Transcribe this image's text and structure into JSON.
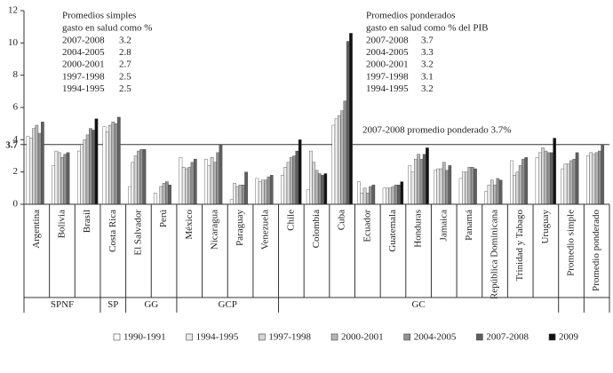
{
  "chart_data": {
    "type": "bar",
    "categories": [
      "Argentina",
      "Bolivia",
      "Brasil",
      "Costa Rica",
      "El Salvador",
      "Perú",
      "México",
      "Nicaragua",
      "Paraguay",
      "Venezuela",
      "Chile",
      "Colombia",
      "Cuba",
      "Ecuador",
      "Guatemala",
      "Honduras",
      "Jamaica",
      "Panamá",
      "República Dominicana",
      "Trinidad y Tabago",
      "Uruguay",
      "Promedio simple",
      "Promedio ponderado"
    ],
    "category_groups": [
      "SPNF",
      "SPNF",
      "SPNF",
      "SP",
      "GG",
      "GG",
      "GCP",
      "GCP",
      "GCP",
      "GCP",
      "GC",
      "GC",
      "GC",
      "GC",
      "GC",
      "GC",
      "GC",
      "GC",
      "GC",
      "GC",
      "GC",
      null,
      null
    ],
    "series": [
      {
        "name": "1990-1991",
        "color": "#ffffff",
        "values": [
          4.2,
          2.4,
          3.3,
          4.8,
          1.1,
          0.7,
          2.9,
          2.8,
          0.3,
          1.6,
          1.8,
          0.9,
          4.9,
          1.4,
          1.0,
          2.4,
          2.1,
          1.6,
          0.8,
          2.7,
          2.9,
          2.2,
          3.0
        ]
      },
      {
        "name": "1994-1995",
        "color": "#ebebeb",
        "values": [
          4.1,
          3.3,
          3.7,
          4.5,
          2.6,
          null,
          2.3,
          2.4,
          1.3,
          1.4,
          2.3,
          3.3,
          5.3,
          0.7,
          1.0,
          2.0,
          2.2,
          2.0,
          1.2,
          1.8,
          3.2,
          2.5,
          3.2
        ]
      },
      {
        "name": "1997-1998",
        "color": "#d4d4d4",
        "values": [
          4.7,
          3.2,
          4.0,
          4.9,
          3.0,
          1.1,
          2.2,
          2.9,
          1.1,
          1.5,
          2.6,
          2.6,
          5.5,
          1.0,
          1.0,
          2.8,
          2.2,
          2.0,
          1.5,
          2.0,
          3.5,
          2.5,
          3.1
        ]
      },
      {
        "name": "2000-2001",
        "color": "#b5b5b5",
        "values": [
          4.9,
          2.9,
          4.3,
          5.1,
          3.3,
          1.3,
          2.3,
          2.6,
          1.2,
          1.5,
          2.9,
          2.1,
          5.8,
          0.7,
          1.1,
          3.1,
          2.6,
          2.3,
          1.2,
          2.4,
          3.3,
          2.7,
          3.2
        ]
      },
      {
        "name": "2004-2005",
        "color": "#919191",
        "values": [
          4.4,
          3.1,
          4.7,
          5.0,
          3.4,
          1.4,
          2.6,
          3.2,
          1.2,
          1.7,
          3.0,
          1.9,
          6.4,
          1.1,
          1.2,
          2.8,
          2.1,
          2.3,
          1.6,
          2.8,
          3.2,
          2.8,
          3.3
        ]
      },
      {
        "name": "2007-2008",
        "color": "#5f5f5f",
        "values": [
          5.1,
          3.2,
          4.6,
          5.4,
          3.4,
          1.2,
          2.8,
          3.7,
          2.0,
          1.8,
          3.3,
          1.8,
          10.1,
          1.2,
          1.2,
          3.1,
          2.4,
          2.2,
          1.5,
          2.9,
          3.2,
          3.2,
          3.7
        ]
      },
      {
        "name": "2009",
        "color": "#111111",
        "values": [
          null,
          null,
          5.3,
          null,
          null,
          null,
          null,
          null,
          null,
          null,
          4.0,
          1.9,
          10.6,
          null,
          1.4,
          3.5,
          null,
          null,
          null,
          null,
          4.1,
          null,
          null
        ]
      }
    ],
    "ylim": [
      0,
      12
    ],
    "yticks": [
      0,
      2,
      4,
      6,
      8,
      10,
      12
    ],
    "reference_line": {
      "value": 3.7,
      "label": "2007-2008 promedio ponderado 3.7%"
    },
    "annotations": [
      {
        "title": [
          "Promedios simples",
          "gasto en salud como %"
        ],
        "rows": [
          {
            "period": "2007-2008",
            "value": 3.2
          },
          {
            "period": "2004-2005",
            "value": 2.8
          },
          {
            "period": "2000-2001",
            "value": 2.7
          },
          {
            "period": "1997-1998",
            "value": 2.5
          },
          {
            "period": "1994-1995",
            "value": 2.5
          }
        ]
      },
      {
        "title": [
          "Promedios ponderados",
          "gasto en salud como % del PIB"
        ],
        "rows": [
          {
            "period": "2007-2008",
            "value": 3.7
          },
          {
            "period": "2004-2005",
            "value": 3.3
          },
          {
            "period": "2000-2001",
            "value": 3.2
          },
          {
            "period": "1997-1998",
            "value": 3.1
          },
          {
            "period": "1994-1995",
            "value": 3.2
          }
        ]
      }
    ]
  }
}
